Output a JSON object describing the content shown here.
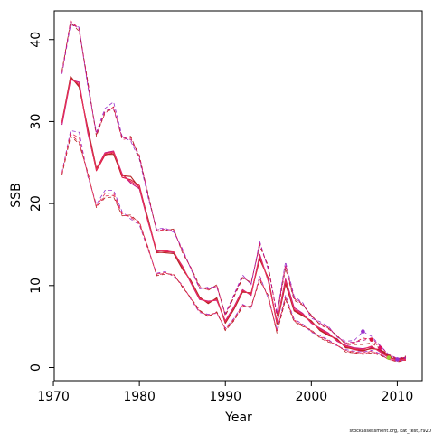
{
  "chart_data": {
    "type": "line",
    "xlabel": "Year",
    "ylabel": "SSB",
    "xlim": [
      1970.1,
      2012.9
    ],
    "ylim": [
      -1.6,
      43.5
    ],
    "x_ticks": [
      1970,
      1980,
      1990,
      2000,
      2010
    ],
    "y_ticks": [
      0,
      10,
      20,
      30,
      40
    ],
    "grid": false,
    "legend": "none",
    "x": [
      1971,
      1972,
      1973,
      1974,
      1975,
      1976,
      1977,
      1978,
      1979,
      1980,
      1981,
      1982,
      1983,
      1984,
      1985,
      1986,
      1987,
      1988,
      1989,
      1990,
      1991,
      1992,
      1993,
      1994,
      1995,
      1996,
      1997,
      1998,
      1999,
      2000,
      2001,
      2002,
      2003,
      2004,
      2005,
      2006,
      2007,
      2008,
      2009,
      2010,
      2011
    ],
    "series": [
      {
        "style": "solid",
        "color": "#dc143c",
        "values": [
          29.8,
          35.3,
          34.4,
          29.0,
          24.0,
          25.9,
          26.2,
          23.2,
          22.9,
          22.2,
          18.0,
          14.0,
          14.1,
          14.1,
          12.2,
          10.5,
          8.5,
          7.9,
          8.4,
          5.5,
          7.2,
          9.3,
          9.0,
          13.5,
          10.7,
          5.4,
          10.5,
          7.0,
          6.4,
          5.6,
          4.6,
          4.0,
          3.4,
          2.5,
          2.2,
          2.0,
          2.4,
          2.1,
          1.3,
          0.9,
          1.2
        ]
      },
      {
        "style": "solid",
        "color": "#c71585",
        "values": [
          29.6,
          35.1,
          34.8,
          28.6,
          24.2,
          26.2,
          26.4,
          23.6,
          22.5,
          21.8,
          17.8,
          14.2,
          14.3,
          14.0,
          12.4,
          10.3,
          8.3,
          8.1,
          8.2,
          5.7,
          7.4,
          9.5,
          8.8,
          13.8,
          10.5,
          5.6,
          10.8,
          7.3,
          6.6,
          5.4,
          4.8,
          4.2,
          3.2,
          2.7,
          2.4,
          2.3,
          2.5,
          2.0,
          1.2,
          1.0,
          1.1
        ]
      },
      {
        "style": "solid",
        "color": "#b22222",
        "values": [
          30.0,
          35.5,
          34.2,
          29.2,
          24.3,
          26.0,
          26.0,
          23.4,
          23.3,
          21.9,
          18.2,
          14.1,
          14.0,
          13.9,
          12.0,
          10.6,
          8.6,
          7.8,
          8.5,
          5.4,
          7.1,
          9.2,
          9.1,
          13.2,
          10.9,
          5.3,
          10.2,
          6.9,
          6.3,
          5.7,
          4.5,
          3.9,
          3.5,
          2.4,
          2.3,
          2.1,
          2.3,
          2.2,
          1.4,
          0.8,
          1.3
        ]
      },
      {
        "style": "solid",
        "color": "#e8305a",
        "values": [
          29.9,
          35.2,
          34.6,
          28.8,
          24.1,
          26.1,
          26.3,
          23.5,
          22.7,
          22.0,
          17.9,
          14.3,
          14.2,
          14.1,
          12.3,
          10.4,
          8.4,
          8.0,
          8.3,
          5.6,
          7.3,
          9.4,
          8.9,
          13.6,
          10.6,
          5.5,
          10.6,
          7.1,
          6.5,
          5.5,
          4.7,
          4.1,
          3.3,
          2.6,
          2.3,
          2.2,
          2.6,
          1.9,
          1.2,
          0.9,
          1.0
        ]
      },
      {
        "style": "dashed",
        "color": "#dc143c",
        "values": [
          36.0,
          42.3,
          41.3,
          34.8,
          28.4,
          31.0,
          31.8,
          27.8,
          28.0,
          25.9,
          21.1,
          16.7,
          16.8,
          16.8,
          14.2,
          12.1,
          9.8,
          9.5,
          10.0,
          6.4,
          8.7,
          11.0,
          10.3,
          15.0,
          12.2,
          6.4,
          12.4,
          8.4,
          7.7,
          6.3,
          5.3,
          4.8,
          3.8,
          2.9,
          3.0,
          3.6,
          3.4,
          2.4,
          1.5,
          1.0,
          1.3
        ]
      },
      {
        "style": "dashed",
        "color": "#9932cc",
        "values": [
          35.8,
          41.8,
          41.5,
          34.2,
          28.7,
          31.6,
          32.4,
          28.2,
          27.6,
          25.4,
          20.8,
          16.9,
          17.0,
          16.5,
          14.5,
          12.0,
          9.6,
          9.8,
          9.8,
          6.6,
          8.9,
          11.3,
          10.1,
          15.4,
          11.9,
          6.7,
          12.9,
          8.7,
          7.9,
          6.0,
          5.6,
          5.0,
          3.7,
          3.2,
          3.3,
          4.4,
          3.8,
          2.7,
          1.6,
          1.1,
          1.2
        ]
      },
      {
        "style": "dashed",
        "color": "#b22222",
        "values": [
          36.2,
          42.1,
          41.0,
          34.9,
          28.2,
          31.2,
          31.5,
          28.0,
          28.2,
          25.6,
          21.3,
          16.6,
          16.7,
          16.9,
          14.0,
          12.2,
          10.0,
          9.4,
          10.1,
          6.3,
          8.6,
          10.9,
          10.4,
          14.8,
          12.4,
          6.3,
          12.1,
          8.2,
          7.6,
          6.4,
          5.2,
          4.7,
          3.9,
          2.8,
          2.8,
          2.8,
          3.0,
          2.3,
          1.5,
          1.0,
          1.4
        ]
      },
      {
        "style": "dashed",
        "color": "#c71585",
        "values": [
          35.9,
          42.2,
          41.2,
          34.5,
          28.5,
          31.3,
          31.6,
          28.1,
          27.8,
          25.7,
          21.0,
          16.8,
          16.9,
          16.7,
          14.3,
          12.1,
          9.7,
          9.6,
          9.9,
          6.5,
          8.8,
          11.1,
          10.2,
          15.2,
          12.1,
          6.5,
          12.6,
          8.5,
          7.8,
          6.2,
          5.4,
          4.9,
          3.8,
          3.0,
          3.1,
          3.3,
          3.6,
          2.6,
          1.6,
          1.1,
          1.3
        ]
      },
      {
        "style": "dashed",
        "color": "#dc143c",
        "values": [
          23.6,
          28.4,
          27.5,
          23.6,
          19.6,
          20.9,
          21.0,
          18.6,
          18.4,
          17.8,
          14.6,
          11.3,
          11.5,
          11.3,
          9.9,
          8.4,
          6.9,
          6.3,
          6.7,
          4.6,
          5.8,
          7.5,
          7.4,
          10.8,
          8.6,
          4.3,
          8.5,
          5.7,
          5.1,
          4.5,
          3.7,
          3.2,
          2.7,
          2.0,
          1.8,
          1.7,
          1.9,
          1.6,
          1.0,
          0.8,
          0.9
        ]
      },
      {
        "style": "dashed",
        "color": "#9932cc",
        "values": [
          23.8,
          28.9,
          28.7,
          23.3,
          19.9,
          21.6,
          21.6,
          19.0,
          18.1,
          17.4,
          14.4,
          11.5,
          11.7,
          11.1,
          10.1,
          8.3,
          6.7,
          6.5,
          6.6,
          4.8,
          6.0,
          7.7,
          7.2,
          11.2,
          8.4,
          4.6,
          8.8,
          5.9,
          5.3,
          4.3,
          3.9,
          3.4,
          2.6,
          2.2,
          2.0,
          1.9,
          2.1,
          1.7,
          1.0,
          0.8,
          0.9
        ]
      },
      {
        "style": "dashed",
        "color": "#b22222",
        "values": [
          23.5,
          28.2,
          27.3,
          23.8,
          19.5,
          20.7,
          20.8,
          18.5,
          18.6,
          17.6,
          14.7,
          11.2,
          11.4,
          11.4,
          9.8,
          8.5,
          7.0,
          6.2,
          6.8,
          4.5,
          5.7,
          7.4,
          7.5,
          10.6,
          8.8,
          4.2,
          8.3,
          5.6,
          5.0,
          4.6,
          3.6,
          3.1,
          2.8,
          1.9,
          1.8,
          1.6,
          1.8,
          1.5,
          1.0,
          0.7,
          0.9
        ]
      },
      {
        "style": "dashed",
        "color": "#e8305a",
        "values": [
          23.7,
          28.6,
          28.0,
          23.5,
          19.7,
          21.2,
          21.3,
          18.8,
          18.3,
          17.5,
          14.5,
          11.4,
          11.6,
          11.2,
          10.0,
          8.4,
          6.8,
          6.4,
          6.7,
          4.7,
          5.9,
          7.6,
          7.3,
          11.0,
          8.5,
          4.5,
          8.6,
          5.8,
          5.2,
          4.4,
          3.8,
          3.3,
          2.7,
          2.1,
          1.9,
          1.8,
          2.0,
          1.6,
          1.0,
          0.8,
          0.9
        ]
      }
    ],
    "points": [
      {
        "x": 2006,
        "y": 4.4,
        "color": "#9932cc"
      },
      {
        "x": 2007,
        "y": 3.4,
        "color": "#dc143c"
      },
      {
        "x": 2008,
        "y": 2.4,
        "color": "#e0115f"
      },
      {
        "x": 2009,
        "y": 1.2,
        "color": "#9acd32"
      },
      {
        "x": 2010,
        "y": 1.0,
        "color": "#9932cc"
      }
    ]
  },
  "footer_text": "stockassessment.org, kat_test, r920"
}
